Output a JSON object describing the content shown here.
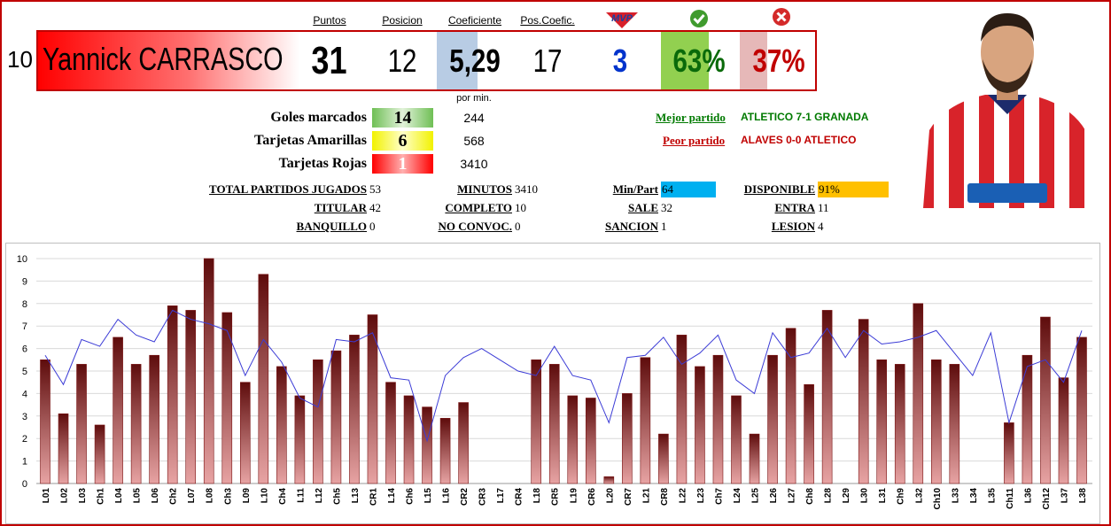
{
  "header": {
    "number": 10,
    "name": "Yannick CARRASCO",
    "columns": [
      "Puntos",
      "Posicion",
      "Coeficiente",
      "Pos.Coefic."
    ],
    "mvp_icon": "MVP",
    "values": {
      "puntos": 31,
      "posicion": 12,
      "coeficiente": "5,29",
      "pos_coefic": 17,
      "mvp": 3,
      "win_pct": "63%",
      "loss_pct": "37%"
    }
  },
  "stats": {
    "per_min_label": "por min.",
    "rows": [
      {
        "label": "Goles marcados",
        "value": 14,
        "per_min": 244
      },
      {
        "label": "Tarjetas Amarillas",
        "value": 6,
        "per_min": 568
      },
      {
        "label": "Tarjetas Rojas",
        "value": 1,
        "per_min": 3410
      }
    ]
  },
  "matches": {
    "best_label": "Mejor partido",
    "best": "ATLETICO 7-1 GRANADA",
    "worst_label": "Peor partido",
    "worst": "ALAVES 0-0 ATLETICO"
  },
  "summary": [
    [
      {
        "label": "TOTAL PARTIDOS JUGADOS",
        "value": 53
      },
      {
        "label": "MINUTOS",
        "value": 3410
      },
      {
        "label": "Min/Part",
        "value": 64,
        "color": "#00b0f0"
      },
      {
        "label": "DISPONIBLE",
        "value": "91%",
        "color": "#ffc000"
      }
    ],
    [
      {
        "label": "TITULAR",
        "value": 42
      },
      {
        "label": "COMPLETO",
        "value": 10
      },
      {
        "label": "SALE",
        "value": 32
      },
      {
        "label": "ENTRA",
        "value": 11
      }
    ],
    [
      {
        "label": "BANQUILLO",
        "value": 0
      },
      {
        "label": "NO CONVOC.",
        "value": 0
      },
      {
        "label": "SANCION",
        "value": 1
      },
      {
        "label": "LESION",
        "value": 4
      }
    ]
  ],
  "chart_data": {
    "type": "bar",
    "categories": [
      "L01",
      "L02",
      "L03",
      "Ch1",
      "L04",
      "L05",
      "L06",
      "Ch2",
      "L07",
      "L08",
      "Ch3",
      "L09",
      "L10",
      "Ch4",
      "L11",
      "L12",
      "Ch5",
      "L13",
      "CR1",
      "L14",
      "Ch6",
      "L15",
      "L16",
      "CR2",
      "CR3",
      "L17",
      "CR4",
      "L18",
      "CR5",
      "L19",
      "CR6",
      "L20",
      "CR7",
      "L21",
      "CR8",
      "L22",
      "L23",
      "Ch7",
      "L24",
      "L25",
      "L26",
      "L27",
      "Ch8",
      "L28",
      "L29",
      "L30",
      "L31",
      "Ch9",
      "L32",
      "Ch10",
      "L33",
      "L34",
      "L35",
      "Ch11",
      "L36",
      "Ch12",
      "L37",
      "L38"
    ],
    "series": [
      {
        "type": "bar",
        "color": "#7a1414",
        "values": [
          5.5,
          3.1,
          5.3,
          2.6,
          6.5,
          5.3,
          5.7,
          7.9,
          7.7,
          10,
          7.6,
          4.5,
          9.3,
          5.2,
          3.9,
          5.5,
          5.9,
          6.6,
          7.5,
          4.5,
          3.9,
          3.4,
          2.9,
          3.6,
          null,
          null,
          null,
          5.5,
          5.3,
          3.9,
          3.8,
          0.3,
          4.0,
          5.6,
          2.2,
          6.6,
          5.2,
          5.7,
          3.9,
          2.2,
          5.7,
          6.9,
          4.4,
          7.7,
          null,
          7.3,
          5.5,
          5.3,
          8.0,
          5.5,
          5.3,
          null,
          null,
          2.7,
          5.7,
          7.4,
          4.7,
          6.5
        ]
      },
      {
        "type": "line",
        "color": "#3b3bd6",
        "values": [
          5.7,
          4.4,
          6.4,
          6.1,
          7.3,
          6.6,
          6.3,
          7.7,
          7.3,
          7.1,
          6.8,
          4.8,
          6.4,
          5.4,
          3.8,
          3.4,
          6.4,
          6.3,
          6.7,
          4.7,
          4.6,
          1.9,
          4.8,
          5.6,
          6.0,
          5.5,
          5.0,
          4.8,
          6.1,
          4.8,
          4.6,
          2.7,
          5.6,
          5.7,
          6.5,
          5.3,
          5.8,
          6.6,
          4.6,
          4.0,
          6.7,
          5.6,
          5.8,
          6.9,
          5.6,
          6.8,
          6.2,
          6.3,
          6.5,
          6.8,
          5.8,
          4.8,
          6.7,
          2.7,
          5.2,
          5.5,
          4.5,
          6.8
        ]
      }
    ],
    "ylim": [
      0,
      10
    ],
    "yticks": [
      0,
      1,
      2,
      3,
      4,
      5,
      6,
      7,
      8,
      9,
      10
    ],
    "grid": true
  }
}
